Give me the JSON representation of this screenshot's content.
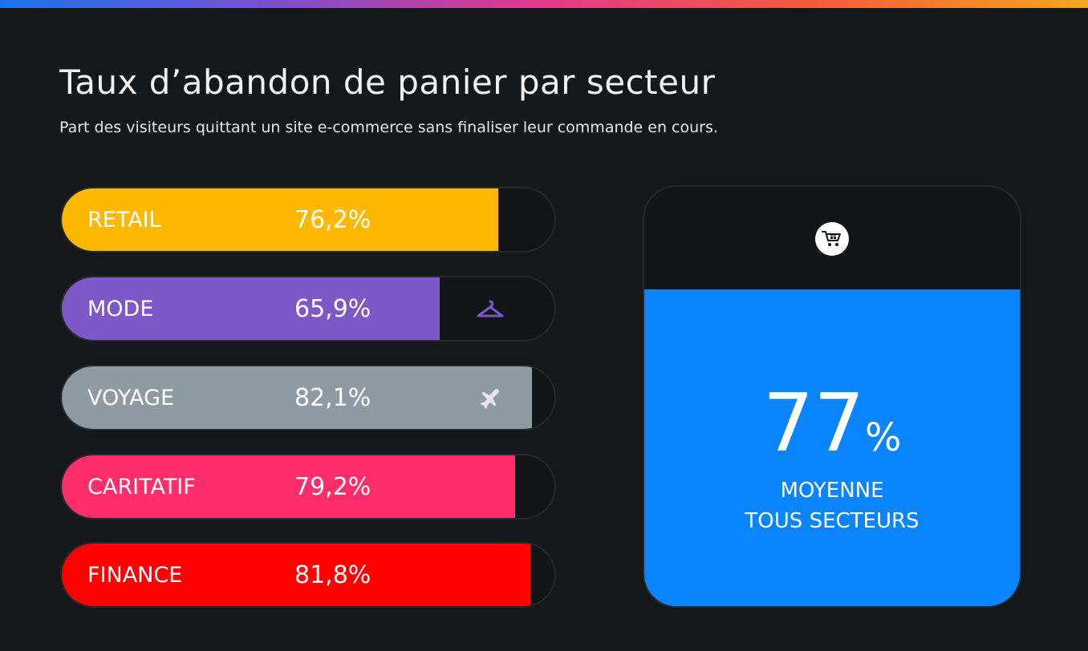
{
  "chart_data": {
    "type": "bar",
    "title": "Taux d’abandon de panier par secteur",
    "subtitle": "Part des visiteurs quittant un site e-commerce sans finaliser leur commande en cours.",
    "categories": [
      "RETAIL",
      "MODE",
      "VOYAGE",
      "CARITATIF",
      "FINANCE"
    ],
    "values": [
      76.2,
      65.9,
      82.1,
      79.2,
      81.8
    ],
    "value_labels": [
      "76,2%",
      "65,9%",
      "82,1%",
      "79,2%",
      "81,8%"
    ],
    "colors": [
      "#ffb800",
      "#7e57c9",
      "#8e9ba3",
      "#ff2d6a",
      "#ff0000"
    ],
    "icons": [
      "shopping-bag-icon",
      "hanger-icon",
      "airplane-icon",
      "heart-icon",
      "credit-card-icon"
    ],
    "xlim": [
      0,
      100
    ],
    "grid": false,
    "average": {
      "value": 77,
      "value_text": "77",
      "unit": "%",
      "label_line1": "MOYENNE",
      "label_line2": "TOUS SECTEURS",
      "icon": "shopping-cart-icon",
      "color": "#0a84ff"
    }
  }
}
